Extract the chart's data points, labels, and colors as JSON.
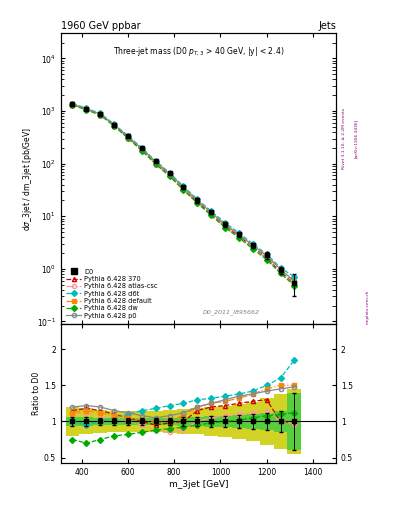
{
  "title_main": "1960 GeV ppbar",
  "title_right": "Jets",
  "watermark": "D0_2011_I895662",
  "xlabel": "m_3jet [GeV]",
  "ylabel_main": "dσ_3jet / dm_3jet [pb/GeV]",
  "ylabel_ratio": "Ratio to D0",
  "rivet_label": "Rivet 3.1.10, ≥ 2.2M events",
  "arxiv_label": "[arXiv:1306.3436]",
  "mcplots_label": "mcplots.cern.ch",
  "x_data": [
    360,
    420,
    480,
    540,
    600,
    660,
    720,
    780,
    840,
    900,
    960,
    1020,
    1080,
    1140,
    1200,
    1260,
    1320
  ],
  "d0_y": [
    1350,
    1100,
    870,
    550,
    330,
    195,
    110,
    65,
    36,
    20,
    12,
    7,
    4.5,
    2.8,
    1.8,
    0.95,
    0.55
  ],
  "d0_yerr": [
    120,
    90,
    70,
    45,
    28,
    16,
    9,
    5.5,
    3.2,
    1.8,
    1.1,
    0.7,
    0.45,
    0.3,
    0.25,
    0.15,
    0.25
  ],
  "py370_y": [
    1320,
    1080,
    850,
    530,
    310,
    180,
    100,
    60,
    33,
    18.5,
    11,
    6.5,
    4.2,
    2.6,
    1.6,
    0.88,
    0.52
  ],
  "py_atlas_y": [
    1310,
    1070,
    840,
    525,
    308,
    178,
    99,
    58,
    32,
    18,
    10.5,
    6.2,
    4.0,
    2.5,
    1.55,
    0.85,
    0.5
  ],
  "py_d6t_y": [
    1380,
    1130,
    900,
    565,
    338,
    200,
    112,
    67,
    37,
    21,
    12.5,
    7.5,
    4.8,
    3.0,
    1.9,
    1.05,
    0.7
  ],
  "py_default_y": [
    1330,
    1090,
    860,
    540,
    320,
    188,
    105,
    62,
    34,
    19.5,
    11.5,
    6.8,
    4.4,
    2.75,
    1.75,
    0.96,
    0.57
  ],
  "py_dw_y": [
    1290,
    1055,
    835,
    520,
    305,
    176,
    98,
    57.5,
    31.5,
    17.8,
    10.4,
    6.1,
    3.9,
    2.4,
    1.5,
    0.82,
    0.48
  ],
  "py_p0_y": [
    1350,
    1105,
    875,
    548,
    327,
    193,
    108,
    64,
    35.5,
    20,
    11.8,
    7.0,
    4.5,
    2.8,
    1.78,
    0.98,
    0.58
  ],
  "ratio_d0_err_stat": [
    0.06,
    0.06,
    0.05,
    0.05,
    0.05,
    0.05,
    0.05,
    0.05,
    0.06,
    0.06,
    0.07,
    0.08,
    0.09,
    0.1,
    0.12,
    0.14,
    0.4
  ],
  "ratio_d0_err_sys_lo": [
    0.2,
    0.18,
    0.16,
    0.15,
    0.14,
    0.14,
    0.15,
    0.16,
    0.17,
    0.18,
    0.2,
    0.22,
    0.24,
    0.27,
    0.32,
    0.38,
    0.45
  ],
  "ratio_d0_err_sys_hi": [
    0.2,
    0.18,
    0.16,
    0.15,
    0.14,
    0.14,
    0.15,
    0.16,
    0.17,
    0.18,
    0.2,
    0.22,
    0.24,
    0.27,
    0.32,
    0.38,
    0.45
  ],
  "ratio_py370": [
    1.15,
    1.18,
    1.15,
    1.1,
    1.05,
    1.0,
    0.95,
    0.98,
    1.0,
    1.15,
    1.2,
    1.22,
    1.25,
    1.28,
    1.3,
    1.0,
    0.98
  ],
  "ratio_py_atlas": [
    1.1,
    1.12,
    1.08,
    1.05,
    1.0,
    0.95,
    0.88,
    0.85,
    0.88,
    1.0,
    1.05,
    1.08,
    1.1,
    1.12,
    1.15,
    1.0,
    0.97
  ],
  "ratio_py_d6t": [
    1.0,
    0.95,
    1.0,
    1.05,
    1.1,
    1.15,
    1.18,
    1.22,
    1.25,
    1.3,
    1.32,
    1.35,
    1.38,
    1.42,
    1.5,
    1.6,
    1.85
  ],
  "ratio_py_default": [
    1.12,
    1.15,
    1.12,
    1.08,
    1.05,
    1.02,
    1.0,
    1.02,
    1.08,
    1.2,
    1.25,
    1.28,
    1.32,
    1.38,
    1.45,
    1.5,
    1.5
  ],
  "ratio_py_dw": [
    0.75,
    0.7,
    0.75,
    0.8,
    0.82,
    0.85,
    0.88,
    0.9,
    0.92,
    0.95,
    0.98,
    1.0,
    1.02,
    1.05,
    1.08,
    1.1,
    1.12
  ],
  "ratio_py_p0": [
    1.2,
    1.22,
    1.2,
    1.15,
    1.12,
    1.08,
    1.05,
    1.08,
    1.12,
    1.2,
    1.25,
    1.3,
    1.35,
    1.38,
    1.42,
    1.45,
    1.48
  ],
  "color_d0": "#000000",
  "color_py370": "#cc0000",
  "color_py_atlas": "#ff9999",
  "color_py_d6t": "#00bbbb",
  "color_py_default": "#ff8800",
  "color_py_dw": "#00aa00",
  "color_py_p0": "#888888",
  "color_band_green": "#44cc44",
  "color_band_yellow": "#cccc00",
  "ylim_main": [
    0.09,
    30000
  ],
  "ylim_ratio": [
    0.42,
    2.35
  ],
  "xlim": [
    310,
    1500
  ]
}
